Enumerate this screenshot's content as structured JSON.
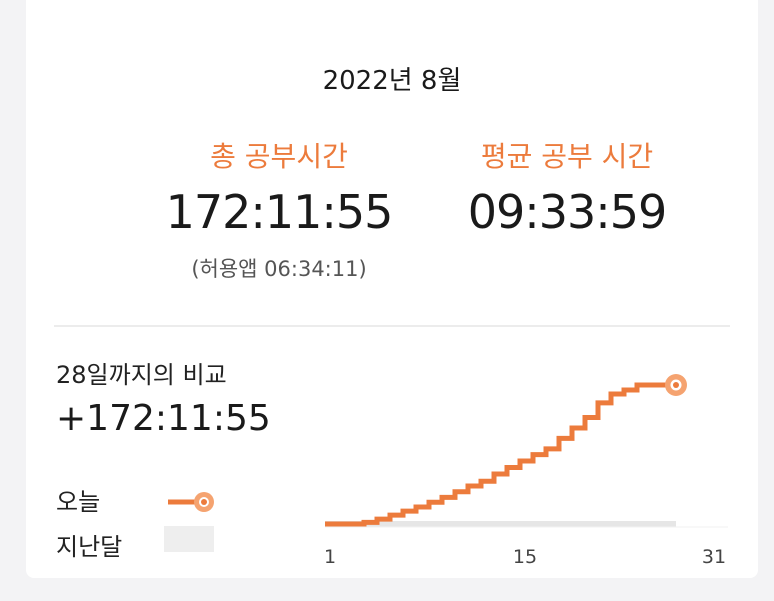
{
  "header": {
    "month": "2022년 8월"
  },
  "stats": {
    "total": {
      "title": "총 공부시간",
      "value": "172:11:55",
      "sub": "(허용앱  06:34:11)"
    },
    "average": {
      "title": "평균 공부 시간",
      "value": "09:33:59"
    }
  },
  "comparison": {
    "label": "28일까지의 비교",
    "value": "+172:11:55"
  },
  "legend": {
    "today": "오늘",
    "last_month": "지난달"
  },
  "colors": {
    "accent": "#ec7b3c",
    "accent_light": "#f5a370",
    "baseline": "#e6e6e6"
  },
  "chart_data": {
    "type": "line",
    "x_ticks": [
      "1",
      "15",
      "31"
    ],
    "xlim": [
      1,
      31
    ],
    "series": [
      {
        "name": "오늘",
        "x": [
          1,
          2,
          3,
          4,
          5,
          6,
          7,
          8,
          9,
          10,
          11,
          12,
          13,
          14,
          15,
          16,
          17,
          18,
          19,
          20,
          21,
          22,
          23,
          24,
          25,
          26,
          27,
          28
        ],
        "values": [
          0,
          0,
          0,
          2,
          6,
          11,
          16,
          21,
          27,
          33,
          40,
          47,
          53,
          62,
          70,
          78,
          86,
          93,
          106,
          119,
          132,
          150,
          161,
          166,
          172.2,
          172.2,
          172.2,
          172.2
        ]
      },
      {
        "name": "지난달",
        "x": [
          1,
          28
        ],
        "values": [
          0,
          0
        ]
      }
    ]
  }
}
